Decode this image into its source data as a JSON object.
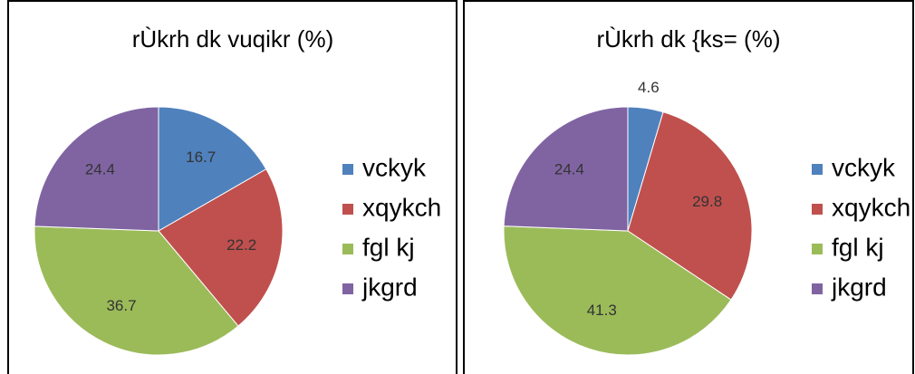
{
  "chart_data": [
    {
      "type": "pie",
      "title": "rÙkrh dk vuqikr (%)",
      "categories": [
        "vckyk",
        "xqykch",
        "fgl kj",
        "jkgrd"
      ],
      "values": [
        16.7,
        22.2,
        36.7,
        24.4
      ],
      "colors": [
        "#4f81bd",
        "#c0504d",
        "#9bbb59",
        "#8064a2"
      ]
    },
    {
      "type": "pie",
      "title": "rÙkrh dk {ks= (%)",
      "categories": [
        "vckyk",
        "xqykch",
        "fgl kj",
        "jkgrd"
      ],
      "values": [
        4.6,
        29.8,
        41.3,
        24.4
      ],
      "colors": [
        "#4f81bd",
        "#c0504d",
        "#9bbb59",
        "#8064a2"
      ]
    }
  ]
}
